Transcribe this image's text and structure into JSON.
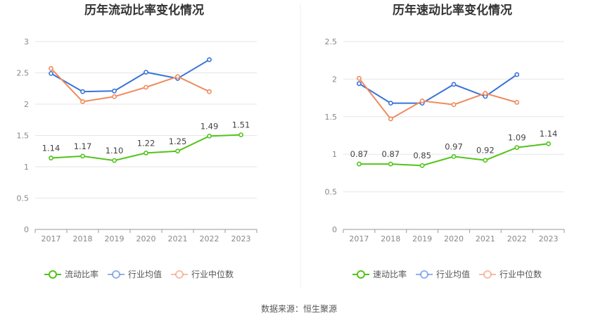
{
  "footer": {
    "source": "数据来源：恒生聚源"
  },
  "colors": {
    "main": "#52c41a",
    "avg": "#3a73d8",
    "median": "#f08a5d",
    "grid": "#e6e6e6",
    "axis": "#999999"
  },
  "chart_data": [
    {
      "type": "line",
      "title": "历年流动比率变化情况",
      "categories": [
        "2017",
        "2018",
        "2019",
        "2020",
        "2021",
        "2022",
        "2023"
      ],
      "ylim": [
        0,
        3
      ],
      "yticks": [
        "0",
        "0.5",
        "1",
        "1.5",
        "2",
        "2.5",
        "3"
      ],
      "ytick_values": [
        0,
        0.5,
        1,
        1.5,
        2,
        2.5,
        3
      ],
      "grid": true,
      "legend_position": "bottom",
      "series": [
        {
          "name": "流动比率",
          "role": "main",
          "values": [
            1.14,
            1.17,
            1.1,
            1.22,
            1.25,
            1.49,
            1.51
          ],
          "labels": [
            "1.14",
            "1.17",
            "1.10",
            "1.22",
            "1.25",
            "1.49",
            "1.51"
          ]
        },
        {
          "name": "行业均值",
          "role": "avg",
          "values": [
            2.49,
            2.2,
            2.21,
            2.51,
            2.41,
            2.71,
            null
          ]
        },
        {
          "name": "行业中位数",
          "role": "median",
          "values": [
            2.57,
            2.04,
            2.12,
            2.27,
            2.44,
            2.2,
            null
          ]
        }
      ]
    },
    {
      "type": "line",
      "title": "历年速动比率变化情况",
      "categories": [
        "2017",
        "2018",
        "2019",
        "2020",
        "2021",
        "2022",
        "2023"
      ],
      "ylim": [
        0,
        2.5
      ],
      "yticks": [
        "0",
        "0.5",
        "1",
        "1.5",
        "2",
        "2.5"
      ],
      "ytick_values": [
        0,
        0.5,
        1,
        1.5,
        2,
        2.5
      ],
      "grid": true,
      "legend_position": "bottom",
      "series": [
        {
          "name": "速动比率",
          "role": "main",
          "values": [
            0.87,
            0.87,
            0.85,
            0.97,
            0.92,
            1.09,
            1.14
          ],
          "labels": [
            "0.87",
            "0.87",
            "0.85",
            "0.97",
            "0.92",
            "1.09",
            "1.14"
          ]
        },
        {
          "name": "行业均值",
          "role": "avg",
          "values": [
            1.94,
            1.68,
            1.68,
            1.93,
            1.77,
            2.06,
            null
          ]
        },
        {
          "name": "行业中位数",
          "role": "median",
          "values": [
            2.01,
            1.47,
            1.71,
            1.66,
            1.81,
            1.69,
            null
          ]
        }
      ]
    }
  ]
}
